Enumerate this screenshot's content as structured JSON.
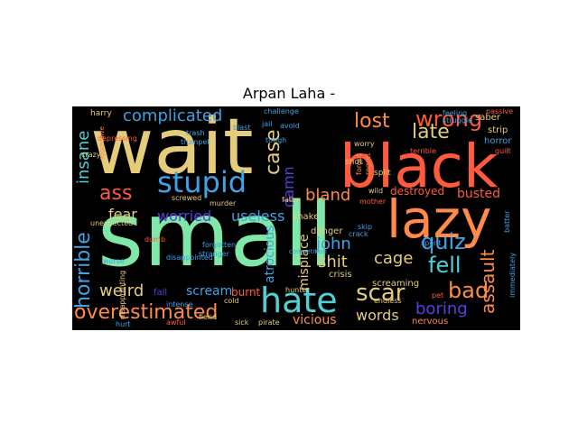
{
  "title": "Arpan Laha -",
  "colors": {
    "background": "#000000",
    "mint": "#7fe8a8",
    "tan": "#e5cc7a",
    "red": "#ff5a3c",
    "orange": "#ff8a4a",
    "blue": "#3fa3e8",
    "cyan": "#4fd1d6",
    "indigo": "#5a3fe0",
    "green": "#9ff08a"
  },
  "words": [
    {
      "text": "wait",
      "color": "#e5cc7a"
    },
    {
      "text": "small",
      "color": "#7fe8a8"
    },
    {
      "text": "black",
      "color": "#ff5a3c"
    },
    {
      "text": "lazy",
      "color": "#ff8a4a"
    },
    {
      "text": "stupid",
      "color": "#3fa3e8"
    },
    {
      "text": "hate",
      "color": "#4fd1d6"
    },
    {
      "text": "complicated",
      "color": "#3fa3e8"
    },
    {
      "text": "wrong",
      "color": "#ff5a3c"
    },
    {
      "text": "lost",
      "color": "#ff8a4a"
    },
    {
      "text": "late",
      "color": "#e5cc7a"
    },
    {
      "text": "case",
      "color": "#e5cc7a"
    },
    {
      "text": "ass",
      "color": "#ff5a3c"
    },
    {
      "text": "horrible",
      "color": "#3fa3e8"
    },
    {
      "text": "insane",
      "color": "#4fd1d6"
    },
    {
      "text": "damn",
      "color": "#5a3fe0"
    },
    {
      "text": "bland",
      "color": "#ff8a4a"
    },
    {
      "text": "fear",
      "color": "#e5cc7a"
    },
    {
      "text": "worried",
      "color": "#5a3fe0"
    },
    {
      "text": "useless",
      "color": "#3fa3e8"
    },
    {
      "text": "quiz",
      "color": "#3fa3e8"
    },
    {
      "text": "fell",
      "color": "#4fd1d6"
    },
    {
      "text": "bad",
      "color": "#ff8a4a"
    },
    {
      "text": "assault",
      "color": "#ff8a4a"
    },
    {
      "text": "scar",
      "color": "#e5cc7a"
    },
    {
      "text": "boring",
      "color": "#5a3fe0"
    },
    {
      "text": "words",
      "color": "#e5cc7a"
    },
    {
      "text": "overestimated",
      "color": "#ff8a4a"
    },
    {
      "text": "weird",
      "color": "#e5cc7a"
    },
    {
      "text": "john",
      "color": "#3fa3e8"
    },
    {
      "text": "shit",
      "color": "#e5cc7a"
    },
    {
      "text": "cage",
      "color": "#e5cc7a"
    },
    {
      "text": "atrocious",
      "color": "#3fa3e8"
    },
    {
      "text": "misplace",
      "color": "#e5cc7a"
    },
    {
      "text": "busted",
      "color": "#ff5a3c"
    },
    {
      "text": "destroyed",
      "color": "#ff5a3c"
    },
    {
      "text": "vicious",
      "color": "#ff8a4a"
    },
    {
      "text": "scream",
      "color": "#3fa3e8"
    },
    {
      "text": "burnt",
      "color": "#ff5a3c"
    },
    {
      "text": "screaming",
      "color": "#e5cc7a"
    },
    {
      "text": "nervous",
      "color": "#ff8a4a"
    },
    {
      "text": "crisis",
      "color": "#e5cc7a"
    },
    {
      "text": "danger",
      "color": "#e5cc7a"
    },
    {
      "text": "snake",
      "color": "#e5cc7a"
    },
    {
      "text": "fall",
      "color": "#5a3fe0"
    },
    {
      "text": "harry",
      "color": "#e5cc7a"
    },
    {
      "text": "trumpet",
      "color": "#3fa3e8"
    },
    {
      "text": "saber",
      "color": "#e5cc7a"
    },
    {
      "text": "strip",
      "color": "#e5cc7a"
    },
    {
      "text": "horror",
      "color": "#3fa3e8"
    },
    {
      "text": "guilt",
      "color": "#ff5a3c"
    },
    {
      "text": "forget",
      "color": "#ff8a4a"
    },
    {
      "text": "regret",
      "color": "#ff8a4a"
    },
    {
      "text": "shot",
      "color": "#e5cc7a"
    },
    {
      "text": "split",
      "color": "#e5cc7a"
    },
    {
      "text": "terrible",
      "color": "#ff5a3c"
    },
    {
      "text": "jail",
      "color": "#3fa3e8"
    },
    {
      "text": "worry",
      "color": "#e5cc7a"
    },
    {
      "text": "passive",
      "color": "#ff5a3c"
    },
    {
      "text": "feeling",
      "color": "#3fa3e8"
    },
    {
      "text": "challenge",
      "color": "#3fa3e8"
    },
    {
      "text": "blast",
      "color": "#3fa3e8"
    },
    {
      "text": "trash",
      "color": "#3fa3e8"
    },
    {
      "text": "avoid",
      "color": "#3fa3e8"
    },
    {
      "text": "depressing",
      "color": "#ff5a3c"
    },
    {
      "text": "struggle",
      "color": "#3fa3e8"
    },
    {
      "text": "crazy",
      "color": "#e5cc7a"
    },
    {
      "text": "aggressive",
      "color": "#ff8a4a"
    },
    {
      "text": "screwed",
      "color": "#e5cc7a"
    },
    {
      "text": "murder",
      "color": "#e5cc7a"
    },
    {
      "text": "unexpected",
      "color": "#e5cc7a"
    },
    {
      "text": "tough",
      "color": "#3fa3e8"
    },
    {
      "text": "fatty",
      "color": "#e5cc7a"
    },
    {
      "text": "mother",
      "color": "#ff5a3c"
    },
    {
      "text": "wild",
      "color": "#e5cc7a"
    },
    {
      "text": "dumb",
      "color": "#ff5a3c"
    },
    {
      "text": "forgotten",
      "color": "#3fa3e8"
    },
    {
      "text": "worse",
      "color": "#3fa3e8"
    },
    {
      "text": "disappointed",
      "color": "#3fa3e8"
    },
    {
      "text": "intense",
      "color": "#3fa3e8"
    },
    {
      "text": "hurt",
      "color": "#3fa3e8"
    },
    {
      "text": "awful",
      "color": "#ff5a3c"
    },
    {
      "text": "sick",
      "color": "#e5cc7a"
    },
    {
      "text": "pirate",
      "color": "#e5cc7a"
    },
    {
      "text": "hunter",
      "color": "#e5cc7a"
    },
    {
      "text": "cold",
      "color": "#e5cc7a"
    },
    {
      "text": "fiend",
      "color": "#e5cc7a"
    },
    {
      "text": "spent",
      "color": "#3fa3e8"
    },
    {
      "text": "pet",
      "color": "#ff5a3c"
    },
    {
      "text": "endless",
      "color": "#e5cc7a"
    },
    {
      "text": "immediately",
      "color": "#3fa3e8"
    },
    {
      "text": "batter",
      "color": "#3fa3e8"
    },
    {
      "text": "crack",
      "color": "#3fa3e8"
    },
    {
      "text": "competition",
      "color": "#3fa3e8"
    },
    {
      "text": "skip",
      "color": "#3fa3e8"
    },
    {
      "text": "stranger",
      "color": "#3fa3e8"
    },
    {
      "text": "disappointing",
      "color": "#e5cc7a"
    }
  ]
}
